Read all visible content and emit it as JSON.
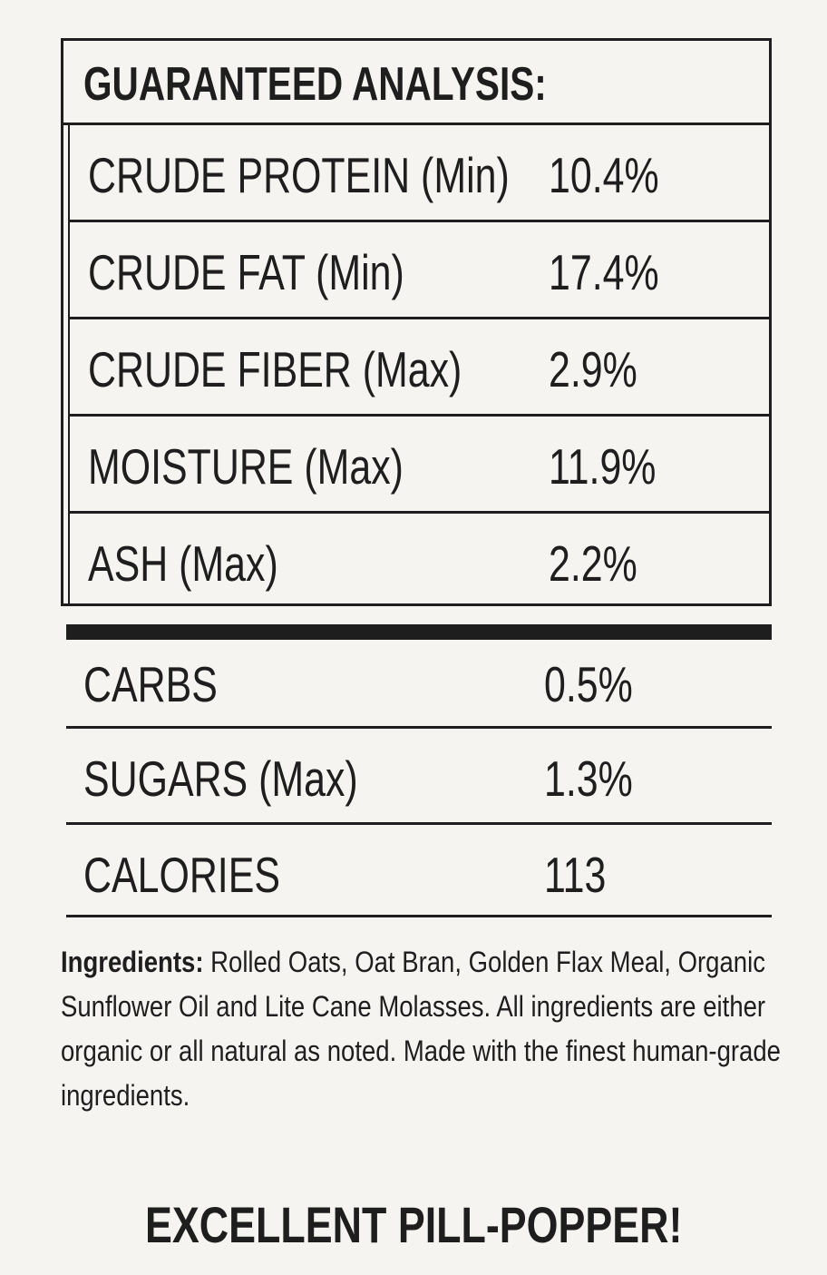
{
  "analysis": {
    "title": "GUARANTEED ANALYSIS:",
    "rows": [
      {
        "label": "CRUDE PROTEIN (Min)",
        "value": "10.4%"
      },
      {
        "label": "CRUDE FAT (Min)",
        "value": "17.4%"
      },
      {
        "label": "CRUDE FIBER (Max)",
        "value": "2.9%"
      },
      {
        "label": "MOISTURE (Max)",
        "value": "11.9%"
      },
      {
        "label": "ASH (Max)",
        "value": "2.2%"
      }
    ]
  },
  "extra": [
    {
      "label": "CARBS",
      "value": "0.5%"
    },
    {
      "label": "SUGARS (Max)",
      "value": "1.3%"
    },
    {
      "label": "CALORIES",
      "value": "113"
    }
  ],
  "ingredients": {
    "heading": "Ingredients:",
    "text": "Rolled Oats, Oat Bran, Golden Flax Meal, Organic Sunflower Oil and Lite Cane Molasses. All ingredients are either organic or all natural as noted. Made with the finest human-grade ingredients."
  },
  "tagline": "EXCELLENT PILL-POPPER!"
}
